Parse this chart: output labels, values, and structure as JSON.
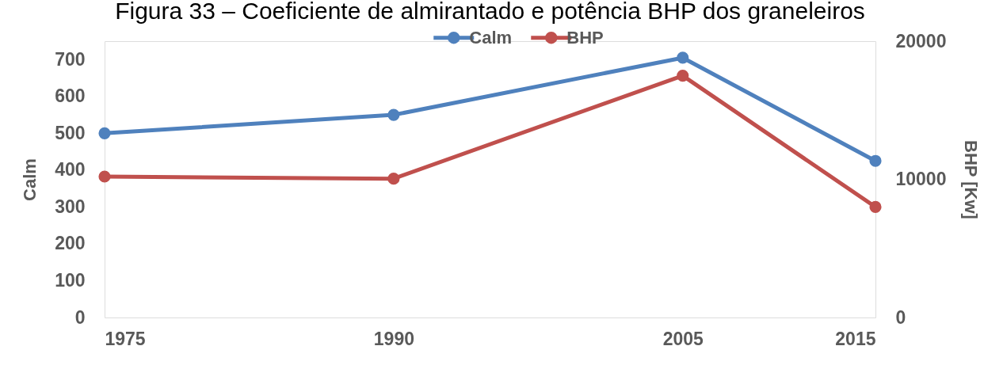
{
  "chart_data": {
    "type": "line",
    "title": "Figura 33 – Coeficiente de almirantado e potência BHP dos graneleiros",
    "ylabel": "Calm",
    "y2label": "BHP [Kw]",
    "x": [
      1975,
      1990,
      2005,
      2015
    ],
    "xlim": [
      1975,
      2015
    ],
    "xticks": [
      1975,
      1990,
      2005,
      2015
    ],
    "ylim": [
      0,
      750
    ],
    "yticks": [
      0,
      100,
      200,
      300,
      400,
      500,
      600,
      700
    ],
    "y2lim": [
      0,
      20000
    ],
    "y2ticks": [
      0,
      10000,
      20000
    ],
    "series": [
      {
        "name": "Calm",
        "color": "#4f81bd",
        "values": [
          500,
          550,
          705,
          425
        ]
      },
      {
        "name": "BHP",
        "color": "#c0504d",
        "axis": "y2",
        "values": [
          10200,
          10050,
          17500,
          8000
        ]
      }
    ],
    "legend": "top",
    "marker": "circle",
    "line_style": "solid"
  }
}
